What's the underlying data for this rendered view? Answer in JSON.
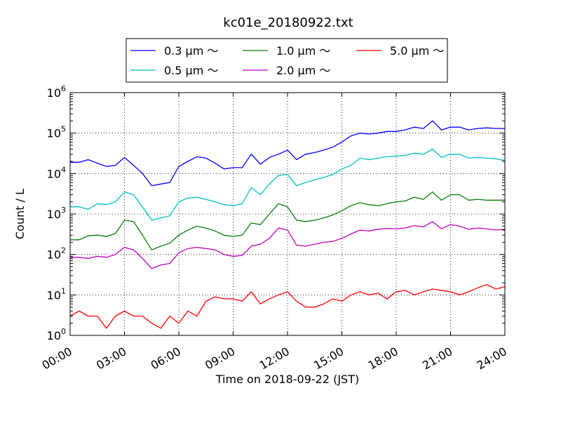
{
  "chart_data": {
    "type": "line",
    "title": "kc01e_20180922.txt",
    "xlabel": "Time on 2018-09-22 (JST)",
    "ylabel": "Count / L",
    "y_scale": "log",
    "ylim": [
      1,
      1000000
    ],
    "xlim": [
      "00:00",
      "24:00"
    ],
    "x_ticks": [
      "00:00",
      "03:00",
      "06:00",
      "09:00",
      "12:00",
      "15:00",
      "18:00",
      "21:00",
      "24:00"
    ],
    "y_ticks": [
      {
        "base": "10",
        "exp": "0"
      },
      {
        "base": "10",
        "exp": "1"
      },
      {
        "base": "10",
        "exp": "2"
      },
      {
        "base": "10",
        "exp": "3"
      },
      {
        "base": "10",
        "exp": "4"
      },
      {
        "base": "10",
        "exp": "5"
      },
      {
        "base": "10",
        "exp": "6"
      }
    ],
    "grid": true,
    "legend_position": "top",
    "x_hours": [
      0,
      0.5,
      1,
      1.5,
      2,
      2.5,
      3,
      3.5,
      4,
      4.5,
      5,
      5.5,
      6,
      6.5,
      7,
      7.5,
      8,
      8.5,
      9,
      9.5,
      10,
      10.5,
      11,
      11.5,
      12,
      12.5,
      13,
      13.5,
      14,
      14.5,
      15,
      15.5,
      16,
      16.5,
      17,
      17.5,
      18,
      18.5,
      19,
      19.5,
      20,
      20.5,
      21,
      21.5,
      22,
      22.5,
      23,
      23.5,
      24
    ],
    "series": [
      {
        "name": "0.3 μm ～",
        "color": "#0000ff",
        "values": [
          19000,
          19000,
          22000,
          18000,
          15000,
          16000,
          25000,
          16000,
          10000,
          5000,
          5500,
          6000,
          15000,
          20000,
          26000,
          24000,
          18000,
          13000,
          14000,
          14000,
          30000,
          17000,
          25000,
          30000,
          38000,
          22000,
          30000,
          33000,
          38000,
          45000,
          60000,
          85000,
          100000,
          95000,
          100000,
          110000,
          110000,
          120000,
          140000,
          130000,
          200000,
          120000,
          140000,
          140000,
          120000,
          130000,
          135000,
          130000,
          130000
        ]
      },
      {
        "name": "0.5 μm ～",
        "color": "#00bfbf",
        "values": [
          1500,
          1500,
          1300,
          1800,
          1700,
          2000,
          3500,
          3000,
          1500,
          700,
          800,
          900,
          2000,
          2500,
          2600,
          2300,
          2000,
          1700,
          1600,
          1800,
          4500,
          3000,
          5500,
          9000,
          9500,
          5000,
          6000,
          7000,
          8000,
          9500,
          13000,
          16000,
          24000,
          22000,
          24000,
          26000,
          27000,
          28000,
          32000,
          30000,
          40000,
          25000,
          30000,
          30000,
          24000,
          25000,
          24000,
          23000,
          21000
        ]
      },
      {
        "name": "1.0 μm ～",
        "color": "#008000",
        "values": [
          230,
          230,
          290,
          300,
          280,
          330,
          700,
          650,
          300,
          130,
          160,
          190,
          300,
          400,
          500,
          450,
          380,
          300,
          280,
          300,
          600,
          550,
          1000,
          1800,
          1500,
          700,
          650,
          700,
          800,
          950,
          1200,
          1600,
          1900,
          1700,
          1600,
          1800,
          2000,
          2100,
          2600,
          2300,
          3500,
          2200,
          3000,
          3000,
          2200,
          2300,
          2200,
          2200,
          2200
        ]
      },
      {
        "name": "2.0 μm ～",
        "color": "#bf00bf",
        "values": [
          85,
          85,
          80,
          90,
          85,
          100,
          150,
          130,
          80,
          45,
          55,
          60,
          110,
          140,
          150,
          140,
          130,
          100,
          90,
          95,
          160,
          180,
          250,
          450,
          400,
          170,
          160,
          180,
          200,
          210,
          250,
          320,
          400,
          380,
          420,
          440,
          430,
          450,
          520,
          480,
          650,
          430,
          550,
          500,
          420,
          450,
          430,
          400,
          420
        ]
      },
      {
        "name": "5.0 μm ～",
        "color": "#ff0000",
        "values": [
          3,
          4,
          3,
          3,
          1.5,
          3,
          4,
          3,
          3,
          2,
          1.5,
          3,
          2,
          4,
          3,
          7,
          9,
          8,
          8,
          7,
          12,
          6,
          8,
          10,
          12,
          7,
          5,
          5,
          6,
          8,
          7,
          10,
          12,
          10,
          11,
          8,
          12,
          13,
          10,
          12,
          14,
          13,
          12,
          10,
          12,
          15,
          18,
          14,
          16
        ]
      }
    ]
  }
}
